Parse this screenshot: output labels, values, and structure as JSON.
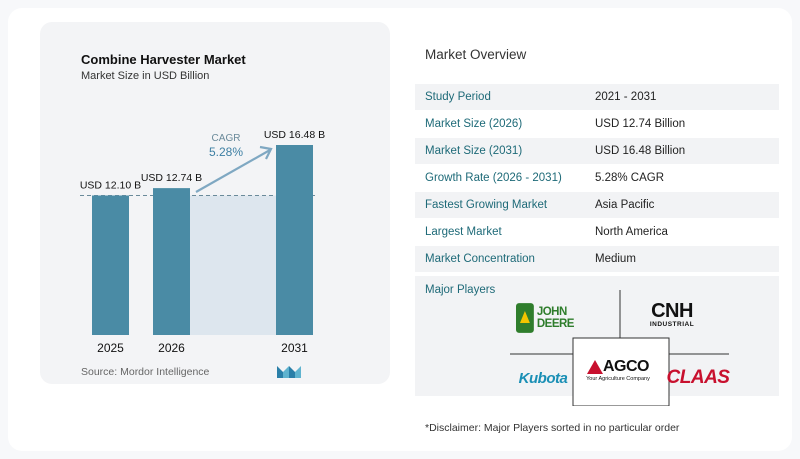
{
  "chart": {
    "title": "Combine Harvester Market",
    "subtitle": "Market Size in USD Billion",
    "source": "Source:  Mordor Intelligence",
    "cagr_label": "CAGR",
    "cagr_value": "5.28%"
  },
  "chart_data": {
    "type": "bar",
    "categories": [
      "2025",
      "2026",
      "2031"
    ],
    "values": [
      12.1,
      12.74,
      16.48
    ],
    "value_labels": [
      "USD 12.10 B",
      "USD 12.74 B",
      "USD 16.48 B"
    ],
    "title": "Combine Harvester Market",
    "subtitle": "Market Size in USD Billion",
    "xlabel": "",
    "ylabel": "",
    "colors": {
      "bar": "#4a8ba5",
      "shade": "#dde6ee"
    }
  },
  "overview": {
    "title": "Market Overview",
    "rows": [
      {
        "label": "Study Period",
        "value": "2021 - 2031"
      },
      {
        "label": "Market Size (2026)",
        "value": "USD 12.74 Billion"
      },
      {
        "label": "Market Size (2031)",
        "value": "USD 16.48 Billion"
      },
      {
        "label": "Growth Rate (2026 - 2031)",
        "value": "5.28% CAGR"
      },
      {
        "label": "Fastest Growing Market",
        "value": "Asia Pacific"
      },
      {
        "label": "Largest Market",
        "value": "North America"
      },
      {
        "label": "Market Concentration",
        "value": "Medium"
      }
    ],
    "players_label": "Major Players",
    "players": {
      "john_deere": "JOHN DEERE",
      "cnh_top": "CNH",
      "cnh_bottom": "INDUSTRIAL",
      "agco_top": "AGCO",
      "agco_bottom": "Your Agriculture Company",
      "kubota": "Kubota",
      "claas": "CLAAS"
    },
    "disclaimer": "*Disclaimer: Major Players sorted in no particular order"
  }
}
